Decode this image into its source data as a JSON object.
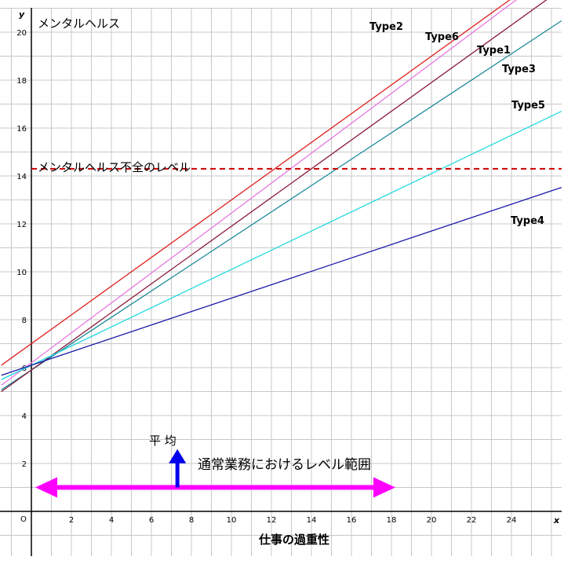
{
  "chart_data": {
    "type": "line",
    "ylabel": "メンタルヘルス",
    "xlabel": "仕事の過重性",
    "x_axis_letter": "x",
    "y_axis_letter": "y",
    "origin_label": "O",
    "xlim": [
      -1.5,
      26.5
    ],
    "ylim": [
      -2,
      21.6
    ],
    "x_ticks": [
      2,
      4,
      6,
      8,
      10,
      12,
      14,
      16,
      18,
      20,
      22,
      24
    ],
    "y_ticks": [
      2,
      4,
      6,
      8,
      10,
      12,
      14,
      16,
      18,
      20
    ],
    "grid": true,
    "series": [
      {
        "name": "Type2",
        "color": "#e02020",
        "intercept": 7.0,
        "slope": 0.6
      },
      {
        "name": "Type6",
        "color": "#e878e0",
        "intercept": 6.2,
        "slope": 0.625
      },
      {
        "name": "Type1",
        "color": "#1b8a9a",
        "intercept": 5.9,
        "slope": 0.55
      },
      {
        "name": "Type3",
        "color": "#8b1a3a",
        "intercept": 5.9,
        "slope": 0.6
      },
      {
        "name": "Type5",
        "color": "#1ed8e0",
        "intercept": 6.1,
        "slope": 0.4
      },
      {
        "name": "Type4",
        "color": "#1a1aa8",
        "intercept": 6.1,
        "slope": 0.28
      }
    ],
    "threshold": {
      "label": "メンタルヘルス不全のレベル",
      "y": 14.3,
      "color": "#cc0000"
    },
    "range_arrow": {
      "label": "通常業務におけるレベル範囲",
      "from": 0,
      "to": 18,
      "y": 1,
      "color": "#ff00ff"
    },
    "average_marker": {
      "label": "平 均",
      "x": 7.3,
      "y_from": 1,
      "y_to": 2.6,
      "color": "#0000ee"
    }
  }
}
